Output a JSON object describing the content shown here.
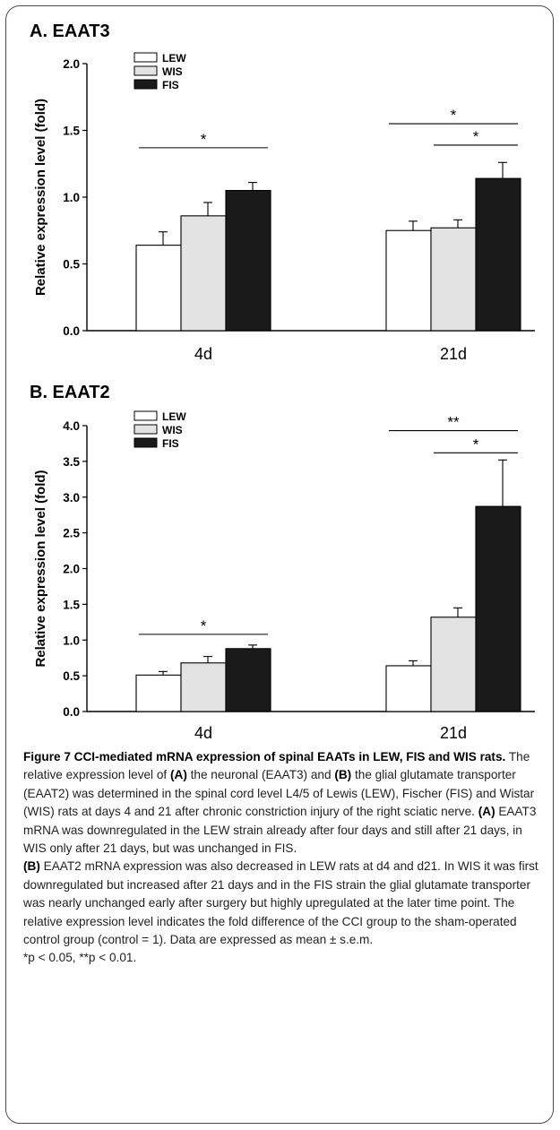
{
  "chart_data": [
    {
      "type": "bar",
      "panel": "A. EAAT3",
      "title": "A. EAAT3",
      "ylabel": "Relative expression level (fold)",
      "xlabel": "",
      "ylim": [
        0,
        2.0
      ],
      "yticks": [
        "0.0",
        "0.5",
        "1.0",
        "1.5",
        "2.0"
      ],
      "categories": [
        "4d",
        "21d"
      ],
      "legend_position": "top-left",
      "series": [
        {
          "name": "LEW",
          "color": "#ffffff",
          "values": [
            0.64,
            0.75
          ],
          "errors": [
            0.1,
            0.07
          ]
        },
        {
          "name": "WIS",
          "color": "#e3e3e3",
          "values": [
            0.86,
            0.77
          ],
          "errors": [
            0.1,
            0.06
          ]
        },
        {
          "name": "FIS",
          "color": "#1a1a1a",
          "values": [
            1.05,
            1.14
          ],
          "errors": [
            0.06,
            0.12
          ]
        }
      ],
      "significance": [
        {
          "category": 0,
          "from": 0,
          "to": 2,
          "y": 1.37,
          "label": "*"
        },
        {
          "category": 1,
          "from": 0,
          "to": 2,
          "y": 1.55,
          "label": "*"
        },
        {
          "category": 1,
          "from": 1,
          "to": 2,
          "y": 1.39,
          "label": "*"
        }
      ]
    },
    {
      "type": "bar",
      "panel": "B. EAAT2",
      "title": "B. EAAT2",
      "ylabel": "Relative expression level (fold)",
      "xlabel": "",
      "ylim": [
        0,
        4.0
      ],
      "yticks": [
        "0.0",
        "0.5",
        "1.0",
        "1.5",
        "2.0",
        "2.5",
        "3.0",
        "3.5",
        "4.0"
      ],
      "categories": [
        "4d",
        "21d"
      ],
      "legend_position": "top-left",
      "series": [
        {
          "name": "LEW",
          "color": "#ffffff",
          "values": [
            0.51,
            0.64
          ],
          "errors": [
            0.05,
            0.07
          ]
        },
        {
          "name": "WIS",
          "color": "#e3e3e3",
          "values": [
            0.68,
            1.32
          ],
          "errors": [
            0.09,
            0.13
          ]
        },
        {
          "name": "FIS",
          "color": "#1a1a1a",
          "values": [
            0.88,
            2.87
          ],
          "errors": [
            0.05,
            0.65
          ]
        }
      ],
      "significance": [
        {
          "category": 0,
          "from": 0,
          "to": 2,
          "y": 1.08,
          "label": "*"
        },
        {
          "category": 1,
          "from": 0,
          "to": 2,
          "y": 3.93,
          "label": "**"
        },
        {
          "category": 1,
          "from": 1,
          "to": 2,
          "y": 3.62,
          "label": "*"
        }
      ]
    }
  ],
  "caption": {
    "title": "Figure 7 CCI-mediated mRNA expression of spinal EAATs in LEW, FIS and WIS rats.",
    "seg1": " The relative expression level of ",
    "ref_a1": "(A)",
    "seg2": " the neuronal (EAAT3) and ",
    "ref_b1": "(B)",
    "seg3": " the glial glutamate transporter (EAAT2) was determined in the spinal cord level L4/5 of Lewis (LEW), Fischer (FIS) and Wistar (WIS) rats at days 4 and 21 after chronic constriction injury of the right sciatic nerve. ",
    "ref_a2": "(A)",
    "seg4": " EAAT3 mRNA was downregulated in the LEW strain already after four days and still after 21 days, in WIS only after 21 days, but was unchanged in FIS. ",
    "ref_b2": "(B)",
    "seg5": " EAAT2 mRNA expression was also decreased in LEW rats at d4 and d21. In WIS it was first downregulated but increased after 21 days and in the FIS strain the glial glutamate transporter was nearly unchanged early after surgery but highly upregulated at the later time point. The relative expression level indicates the fold difference of the CCI group to the sham-operated control group (control = 1). Data are expressed as mean ± s.e.m.",
    "footnote": "*p < 0.05, **p < 0.01."
  }
}
